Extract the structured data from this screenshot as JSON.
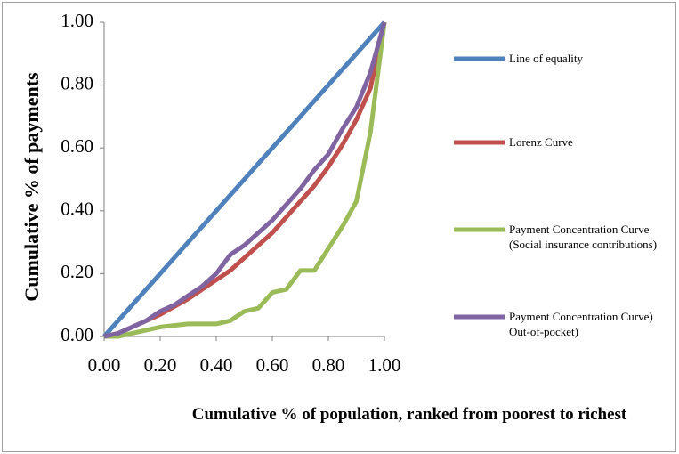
{
  "chart_data": {
    "type": "line",
    "x_label": "Cumulative % of population, ranked from poorest to richest",
    "y_label": "Cumulative % of payments",
    "x": [
      0,
      0.05,
      0.1,
      0.15,
      0.2,
      0.25,
      0.3,
      0.35,
      0.4,
      0.45,
      0.5,
      0.55,
      0.6,
      0.65,
      0.7,
      0.75,
      0.8,
      0.85,
      0.9,
      0.95,
      1
    ],
    "series": [
      {
        "name": "Line of equality",
        "color": "#4f81bd",
        "values": [
          0,
          0.05,
          0.1,
          0.15,
          0.2,
          0.25,
          0.3,
          0.35,
          0.4,
          0.45,
          0.5,
          0.55,
          0.6,
          0.65,
          0.7,
          0.75,
          0.8,
          0.85,
          0.9,
          0.95,
          1
        ]
      },
      {
        "name": "Lorenz Curve",
        "color": "#c0504d",
        "values": [
          0,
          0.01,
          0.03,
          0.05,
          0.07,
          0.095,
          0.12,
          0.15,
          0.18,
          0.21,
          0.25,
          0.29,
          0.33,
          0.38,
          0.43,
          0.48,
          0.54,
          0.61,
          0.69,
          0.79,
          1
        ]
      },
      {
        "name": "Payment Concentration Curve (Social insurance contributions)",
        "color": "#9bbb59",
        "values": [
          0,
          0,
          0.01,
          0.02,
          0.03,
          0.035,
          0.04,
          0.04,
          0.04,
          0.05,
          0.08,
          0.09,
          0.14,
          0.15,
          0.21,
          0.21,
          0.28,
          0.35,
          0.43,
          0.65,
          1
        ]
      },
      {
        "name": "Payment Concentration Curve) Out-of-pocket)",
        "color": "#8064a2",
        "values": [
          0,
          0.01,
          0.03,
          0.05,
          0.08,
          0.1,
          0.13,
          0.16,
          0.2,
          0.26,
          0.29,
          0.33,
          0.37,
          0.42,
          0.47,
          0.53,
          0.58,
          0.66,
          0.73,
          0.84,
          1
        ]
      }
    ],
    "xlim": [
      0,
      1
    ],
    "ylim": [
      0,
      1
    ],
    "xticks": [
      {
        "value": 0,
        "label": "0.00"
      },
      {
        "value": 0.2,
        "label": "0.20"
      },
      {
        "value": 0.4,
        "label": "0.40"
      },
      {
        "value": 0.6,
        "label": "0.60"
      },
      {
        "value": 0.8,
        "label": "0.80"
      },
      {
        "value": 1,
        "label": "1.00"
      }
    ],
    "yticks": [
      {
        "value": 0,
        "label": "0.00"
      },
      {
        "value": 0.2,
        "label": "0.20"
      },
      {
        "value": 0.4,
        "label": "0.40"
      },
      {
        "value": 0.6,
        "label": "0.60"
      },
      {
        "value": 0.8,
        "label": "0.80"
      },
      {
        "value": 1,
        "label": "1.00"
      }
    ],
    "legend": "right"
  }
}
